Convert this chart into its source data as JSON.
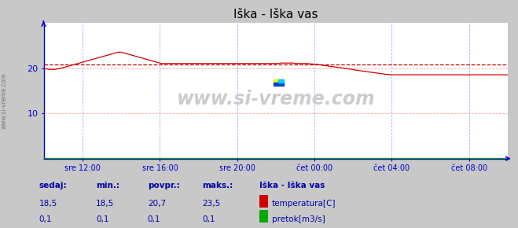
{
  "title": "Iška - Iška vas",
  "bg_color": "#c8c8c8",
  "plot_bg_color": "#ffffff",
  "grid_color_h": "#ffaaaa",
  "grid_color_v": "#aaaaff",
  "axis_color": "#0000cc",
  "title_color": "#000000",
  "watermark": "www.si-vreme.com",
  "watermark_color": "#cccccc",
  "x_labels": [
    "sre 12:00",
    "sre 16:00",
    "sre 20:00",
    "čet 00:00",
    "čet 04:00",
    "čet 08:00"
  ],
  "x_ticks_frac": [
    0.0833,
    0.25,
    0.4167,
    0.5833,
    0.75,
    0.9167
  ],
  "y_min": 0,
  "y_max": 30,
  "y_ticks": [
    10,
    20
  ],
  "avg_line_value": 20.7,
  "avg_line_color": "#cc0000",
  "temp_color": "#cc0000",
  "flow_color": "#00aa00",
  "label_color": "#0000aa",
  "legend_title": "Iška - Iška vas",
  "sedaj_label": "sedaj:",
  "min_label": "min.:",
  "povpr_label": "povpr.:",
  "maks_label": "maks.:",
  "temp_sedaj": "18,5",
  "temp_min": "18,5",
  "temp_povpr": "20,7",
  "temp_maks": "23,5",
  "flow_sedaj": "0,1",
  "flow_min": "0,1",
  "flow_povpr": "0,1",
  "flow_maks": "0,1",
  "n_points": 289,
  "temp_data": [
    19.8,
    19.8,
    19.8,
    19.7,
    19.7,
    19.7,
    19.7,
    19.7,
    19.8,
    19.8,
    19.9,
    20.0,
    20.1,
    20.2,
    20.3,
    20.4,
    20.5,
    20.6,
    20.7,
    20.8,
    20.9,
    21.0,
    21.1,
    21.2,
    21.3,
    21.4,
    21.5,
    21.6,
    21.7,
    21.8,
    21.9,
    22.0,
    22.1,
    22.2,
    22.3,
    22.4,
    22.5,
    22.6,
    22.7,
    22.8,
    22.9,
    23.0,
    23.1,
    23.2,
    23.3,
    23.4,
    23.5,
    23.5,
    23.5,
    23.4,
    23.3,
    23.2,
    23.1,
    23.0,
    22.9,
    22.8,
    22.7,
    22.6,
    22.5,
    22.4,
    22.3,
    22.2,
    22.1,
    22.0,
    21.9,
    21.8,
    21.7,
    21.6,
    21.5,
    21.4,
    21.3,
    21.2,
    21.1,
    21.0,
    21.0,
    21.0,
    21.0,
    21.0,
    21.0,
    21.0,
    21.0,
    21.0,
    21.0,
    21.0,
    21.0,
    21.0,
    21.0,
    21.0,
    21.0,
    21.0,
    21.0,
    21.0,
    21.0,
    21.0,
    21.0,
    21.0,
    21.0,
    21.0,
    21.0,
    21.0,
    21.0,
    21.0,
    21.0,
    21.0,
    21.0,
    21.0,
    21.0,
    21.0,
    21.0,
    21.0,
    21.0,
    21.0,
    21.0,
    21.0,
    21.0,
    21.0,
    21.0,
    21.0,
    21.0,
    21.0,
    21.0,
    21.0,
    21.0,
    21.0,
    21.0,
    21.0,
    21.0,
    21.0,
    21.0,
    21.0,
    21.0,
    21.0,
    21.0,
    21.0,
    21.0,
    21.0,
    21.0,
    21.0,
    21.0,
    21.0,
    21.0,
    21.0,
    21.0,
    21.0,
    21.0,
    21.0,
    21.0,
    21.1,
    21.1,
    21.1,
    21.1,
    21.1,
    21.1,
    21.1,
    21.1,
    21.1,
    21.0,
    21.0,
    21.0,
    21.0,
    21.0,
    21.0,
    21.0,
    21.0,
    21.0,
    20.9,
    20.9,
    20.9,
    20.8,
    20.8,
    20.8,
    20.7,
    20.7,
    20.6,
    20.6,
    20.5,
    20.5,
    20.4,
    20.4,
    20.3,
    20.3,
    20.2,
    20.2,
    20.1,
    20.1,
    20.0,
    20.0,
    19.9,
    19.9,
    19.8,
    19.8,
    19.7,
    19.7,
    19.6,
    19.5,
    19.5,
    19.4,
    19.4,
    19.3,
    19.3,
    19.2,
    19.2,
    19.1,
    19.1,
    19.0,
    19.0,
    18.9,
    18.9,
    18.8,
    18.8,
    18.7,
    18.7,
    18.6,
    18.6,
    18.6,
    18.5,
    18.5,
    18.5,
    18.5,
    18.5,
    18.5,
    18.5,
    18.5,
    18.5,
    18.5,
    18.5,
    18.5,
    18.5,
    18.5,
    18.5,
    18.5,
    18.5,
    18.5,
    18.5,
    18.5,
    18.5,
    18.5,
    18.5,
    18.5,
    18.5,
    18.5,
    18.5,
    18.5,
    18.5,
    18.5,
    18.5,
    18.5,
    18.5,
    18.5,
    18.5,
    18.5,
    18.5,
    18.5,
    18.5,
    18.5,
    18.5,
    18.5,
    18.5,
    18.5,
    18.5,
    18.5,
    18.5,
    18.5,
    18.5,
    18.5,
    18.5,
    18.5,
    18.5,
    18.5,
    18.5,
    18.5,
    18.5,
    18.5,
    18.5,
    18.5,
    18.5,
    18.5,
    18.5,
    18.5,
    18.5,
    18.5,
    18.5,
    18.5,
    18.5,
    18.5,
    18.5,
    18.5,
    18.5,
    18.5
  ],
  "flow_data_value": 0.1,
  "logo_colors": [
    "#ffee00",
    "#00aaff",
    "#0000cc"
  ]
}
